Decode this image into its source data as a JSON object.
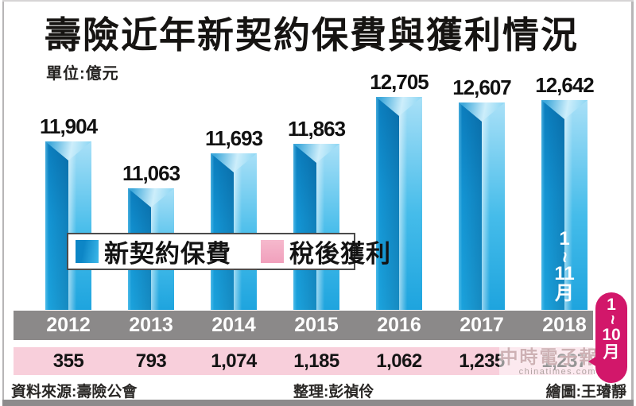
{
  "title": "壽險近年新契約保費與獲利情況",
  "unit_label": "單位:億元",
  "legend": {
    "premium": "新契約保費",
    "profit": "稅後獲利"
  },
  "chart_data": {
    "type": "bar",
    "title": "壽險近年新契約保費與獲利情況",
    "unit": "億元",
    "categories": [
      "2012",
      "2013",
      "2014",
      "2015",
      "2016",
      "2017",
      "2018"
    ],
    "series": [
      {
        "name": "新契約保費",
        "values": [
          11904,
          11063,
          11693,
          11863,
          12705,
          12607,
          12642
        ],
        "labels": [
          "11,904",
          "11,063",
          "11,693",
          "11,863",
          "12,705",
          "12,607",
          "12,642"
        ],
        "color": "#1596d4"
      },
      {
        "name": "稅後獲利",
        "values": [
          355,
          793,
          1074,
          1185,
          1062,
          1235,
          1237
        ],
        "labels": [
          "355",
          "793",
          "1,074",
          "1,185",
          "1,062",
          "1,235",
          "1,237"
        ],
        "color": "#f8cfdb"
      }
    ],
    "notes": {
      "premium_2018": "1~11月",
      "profit_2018": "1~10月"
    },
    "legend_position": "middle-left",
    "grid": false,
    "ylim": [
      8877,
      13000
    ]
  },
  "watermark": {
    "line1": "中時電子報",
    "line2": "chinatimes.com"
  },
  "footer": {
    "source": "資料來源:壽險公會",
    "editor": "整理:彭禎伶",
    "artist": "繪圖:王璿靜"
  },
  "colors": {
    "bar_dark": "#0b7dbd",
    "bar_light": "#a9e0f7",
    "year_band": "#8b8989",
    "profit_band": "#f8cfdb",
    "legend_pink": "#f3a8c2",
    "ribbon": "#d2176a"
  }
}
